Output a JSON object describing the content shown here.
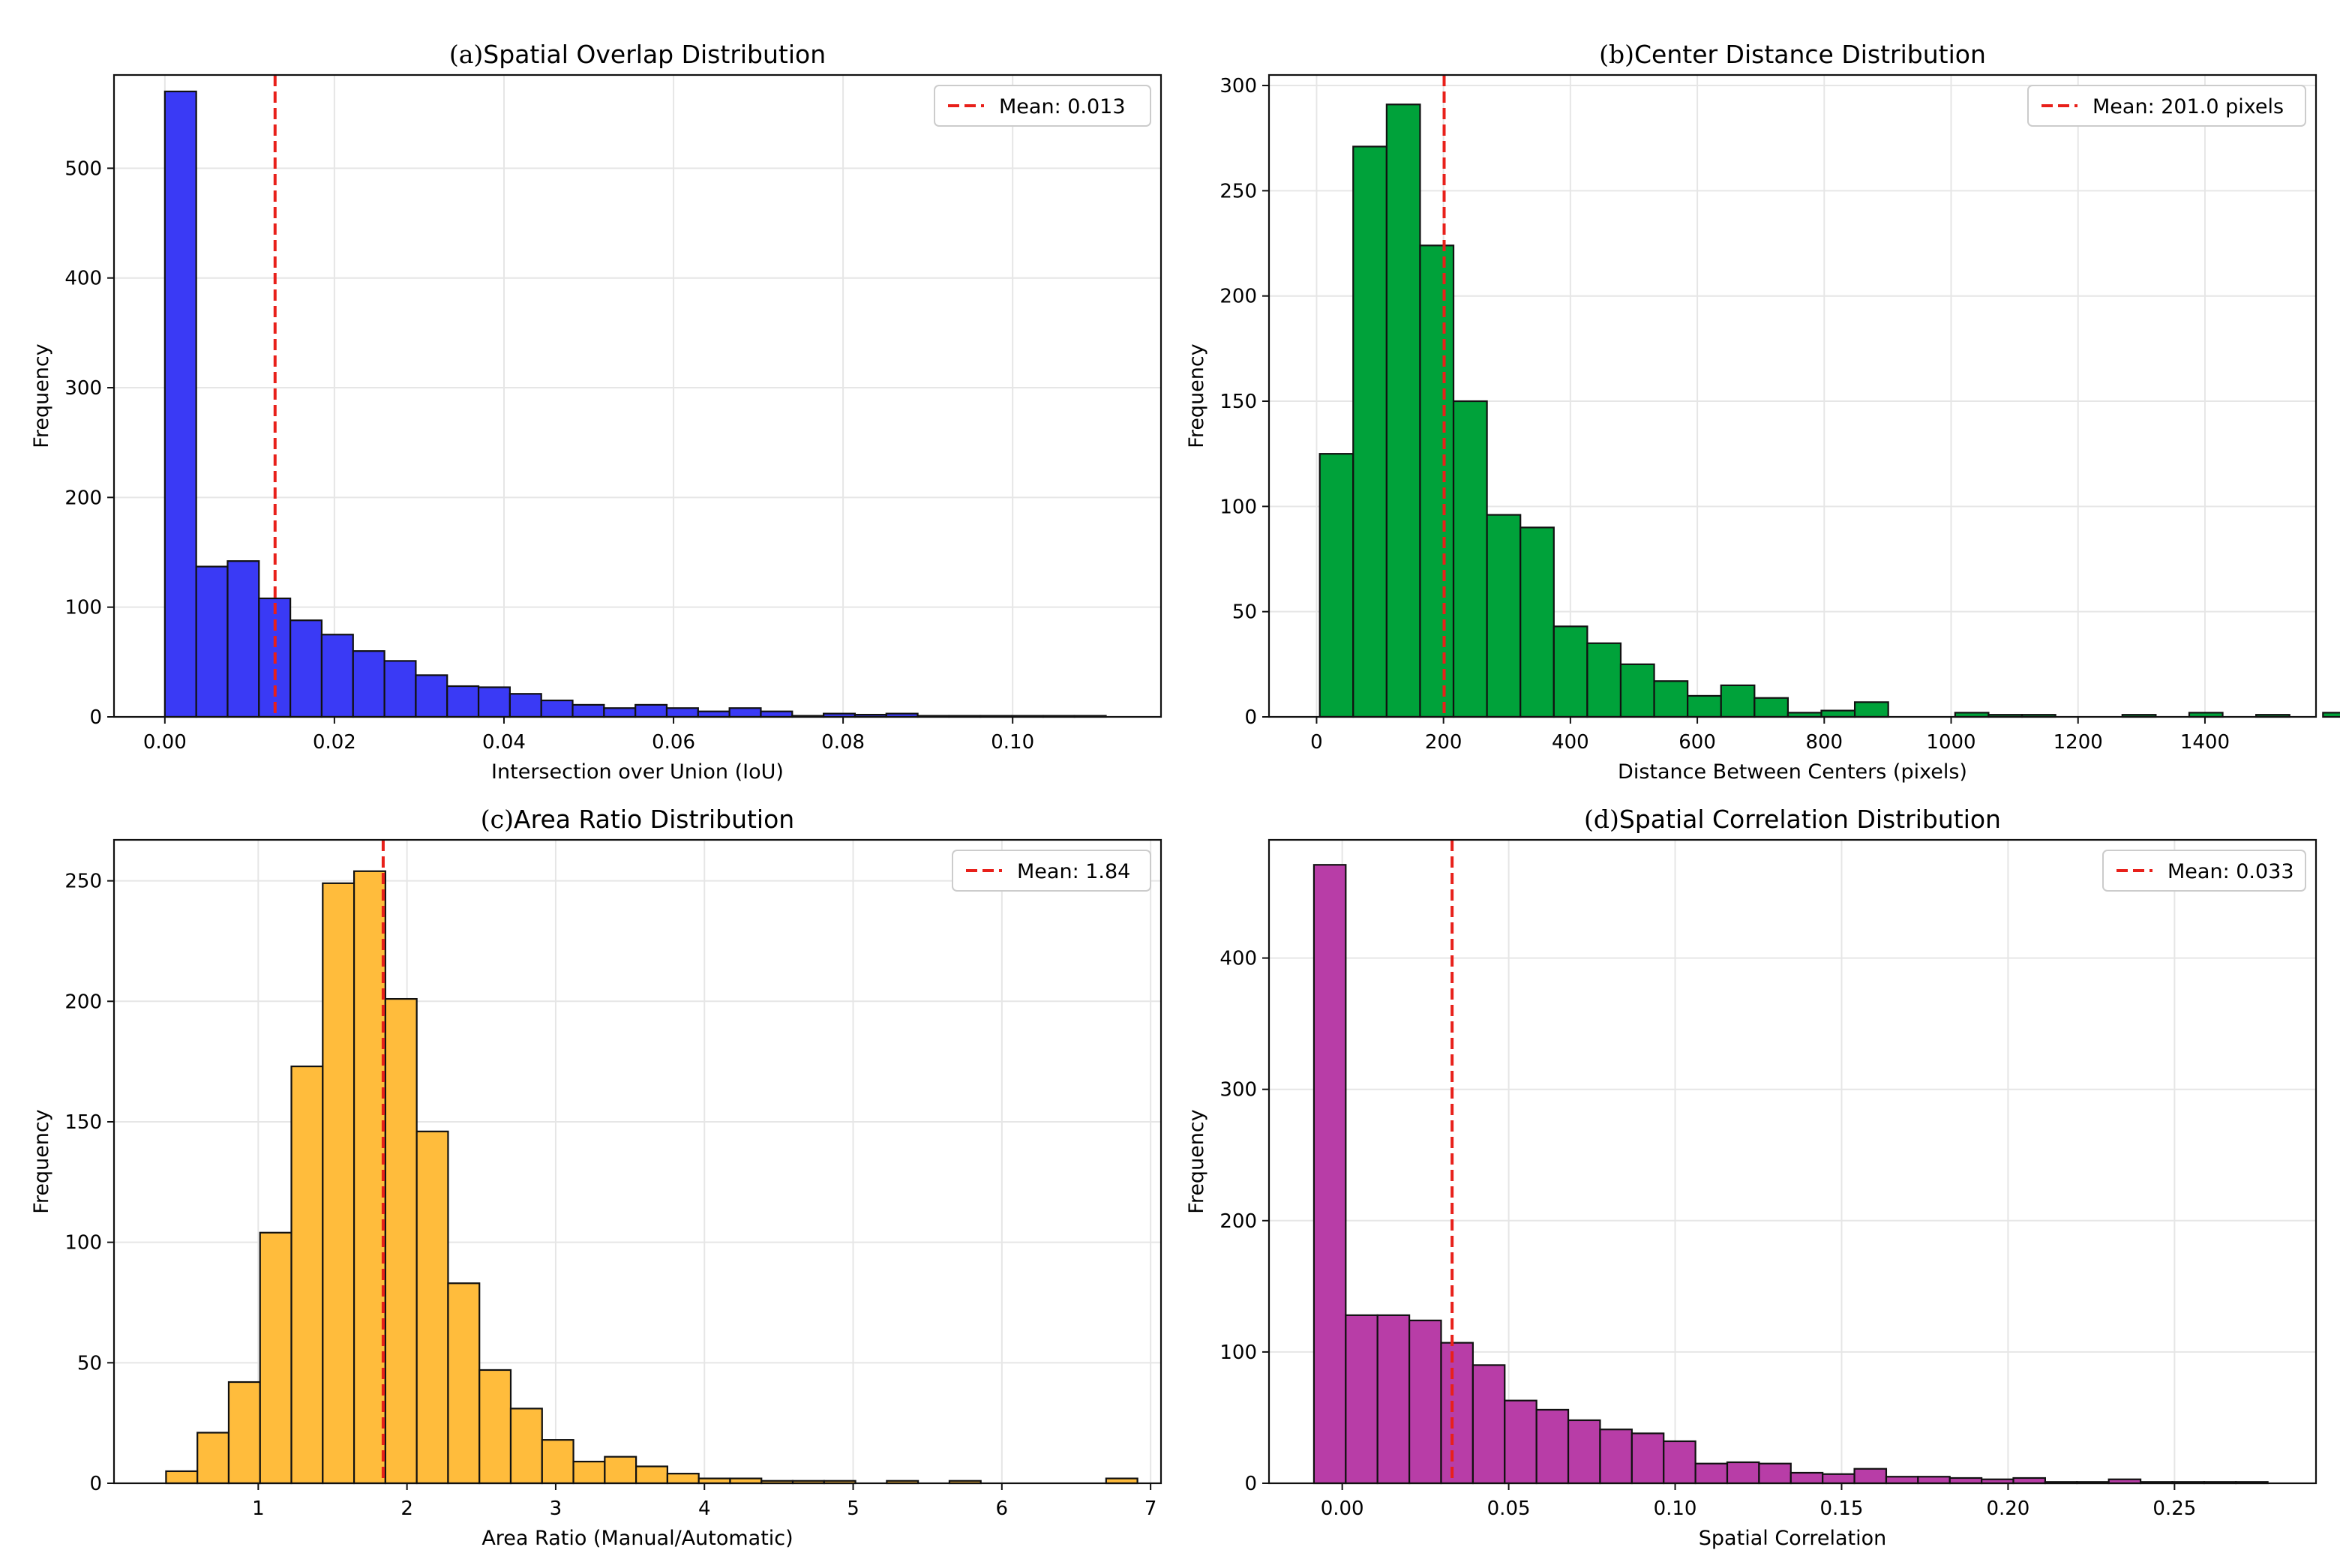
{
  "figure": {
    "background": "#ffffff"
  },
  "chart_data": [
    {
      "type": "bar",
      "panel": "(a)",
      "title": "Spatial Overlap Distribution",
      "xlabel": "Intersection over Union (IoU)",
      "ylabel": "Frequency",
      "color": "#3a3af5",
      "xlim": [
        -0.006,
        0.1175
      ],
      "ylim": [
        0,
        585
      ],
      "xticks": [
        0.0,
        0.02,
        0.04,
        0.06,
        0.08,
        0.1
      ],
      "xtick_labels": [
        "0.00",
        "0.02",
        "0.04",
        "0.06",
        "0.08",
        "0.10"
      ],
      "yticks": [
        0,
        100,
        200,
        300,
        400,
        500
      ],
      "ytick_labels": [
        "0",
        "100",
        "200",
        "300",
        "400",
        "500"
      ],
      "bin_start": 0.0,
      "bin_width": 0.0037,
      "values": [
        570,
        137,
        142,
        108,
        88,
        75,
        60,
        51,
        38,
        28,
        27,
        21,
        15,
        11,
        8,
        11,
        8,
        5,
        8,
        5,
        1,
        3,
        2,
        3,
        1,
        1,
        1,
        1,
        1,
        1
      ],
      "mean": 0.013,
      "mean_label": "Mean: 0.013",
      "legend_loc": "upper right",
      "grid": true
    },
    {
      "type": "bar",
      "panel": "(b)",
      "title": "Center Distance Distribution",
      "xlabel": "Distance Between Centers (pixels)",
      "ylabel": "Frequency",
      "color": "#00a23a",
      "xlim": [
        -75,
        1575
      ],
      "ylim": [
        0,
        305
      ],
      "xticks": [
        0,
        200,
        400,
        600,
        800,
        1000,
        1200,
        1400
      ],
      "xtick_labels": [
        "0",
        "200",
        "400",
        "600",
        "800",
        "1000",
        "1200",
        "1400"
      ],
      "yticks": [
        0,
        50,
        100,
        150,
        200,
        250,
        300
      ],
      "ytick_labels": [
        "0",
        "50",
        "100",
        "150",
        "200",
        "250",
        "300"
      ],
      "bin_start": 5,
      "bin_width": 52.7,
      "values": [
        125,
        271,
        291,
        224,
        150,
        96,
        90,
        43,
        35,
        25,
        17,
        10,
        15,
        9,
        2,
        3,
        7,
        0,
        0,
        2,
        1,
        1,
        0,
        0,
        1,
        0,
        2,
        0,
        1,
        0,
        2
      ],
      "mean": 201.0,
      "mean_label": "Mean: 201.0 pixels",
      "legend_loc": "upper right",
      "grid": true
    },
    {
      "type": "bar",
      "panel": "(c)",
      "title": "Area Ratio Distribution",
      "xlabel": "Area Ratio (Manual/Automatic)",
      "ylabel": "Frequency",
      "color": "#ffbc3c",
      "xlim": [
        0.03,
        7.07
      ],
      "ylim": [
        0,
        267
      ],
      "xticks": [
        1,
        2,
        3,
        4,
        5,
        6,
        7
      ],
      "xtick_labels": [
        "1",
        "2",
        "3",
        "4",
        "5",
        "6",
        "7"
      ],
      "yticks": [
        0,
        50,
        100,
        150,
        200,
        250
      ],
      "ytick_labels": [
        "0",
        "50",
        "100",
        "150",
        "200",
        "250"
      ],
      "bin_start": 0.38,
      "bin_width": 0.2107,
      "values": [
        5,
        21,
        42,
        104,
        173,
        249,
        254,
        201,
        146,
        83,
        47,
        31,
        18,
        9,
        11,
        7,
        4,
        2,
        2,
        1,
        1,
        1,
        0,
        1,
        0,
        1,
        0,
        0,
        0,
        0,
        2
      ],
      "mean": 1.84,
      "mean_label": "Mean: 1.84",
      "legend_loc": "upper right",
      "grid": true
    },
    {
      "type": "bar",
      "panel": "(d)",
      "title": "Spatial Correlation Distribution",
      "xlabel": "Spatial Correlation",
      "ylabel": "Frequency",
      "color": "#b83da7",
      "xlim": [
        -0.022,
        0.2925
      ],
      "ylim": [
        0,
        490
      ],
      "xticks": [
        0.0,
        0.05,
        0.1,
        0.15,
        0.2,
        0.25
      ],
      "xtick_labels": [
        "0.00",
        "0.05",
        "0.10",
        "0.15",
        "0.20",
        "0.25"
      ],
      "yticks": [
        0,
        100,
        200,
        300,
        400
      ],
      "ytick_labels": [
        "0",
        "100",
        "200",
        "300",
        "400"
      ],
      "bin_start": -0.0085,
      "bin_width": 0.00955,
      "values": [
        471,
        128,
        128,
        124,
        107,
        90,
        63,
        56,
        48,
        41,
        38,
        32,
        15,
        16,
        15,
        8,
        7,
        11,
        5,
        5,
        4,
        3,
        4,
        1,
        1,
        3,
        1,
        1,
        1,
        1
      ],
      "mean": 0.033,
      "mean_label": "Mean: 0.033",
      "legend_loc": "upper right",
      "grid": true
    }
  ]
}
